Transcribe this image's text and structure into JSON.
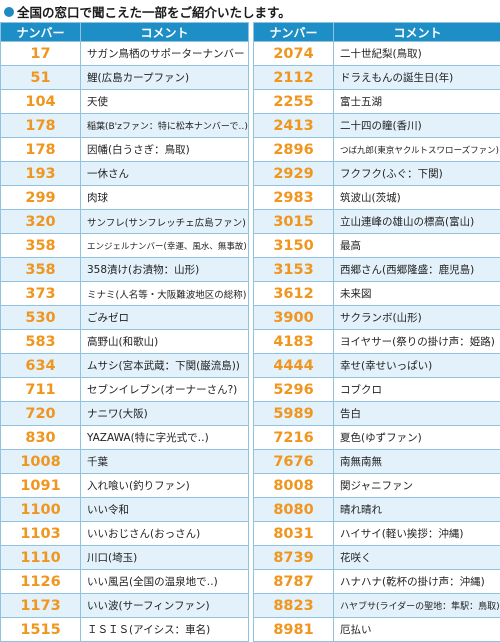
{
  "heading": "全国の窓口で聞こえた一部をご紹介いたします。",
  "columns": {
    "number": "ナンバー",
    "comment": "コメント"
  },
  "left_rows": [
    {
      "number": "17",
      "comment": "サガン鳥栖のサポーターナンバー"
    },
    {
      "number": "51",
      "comment": "鯉(広島カープファン)"
    },
    {
      "number": "104",
      "comment": "天使"
    },
    {
      "number": "178",
      "comment": "稲葉(B'zファン：特に松本ナンバーで‥)"
    },
    {
      "number": "178",
      "comment": "因幡(白うさぎ：鳥取)"
    },
    {
      "number": "193",
      "comment": "一休さん"
    },
    {
      "number": "299",
      "comment": "肉球"
    },
    {
      "number": "320",
      "comment": "サンフレ(サンフレッチェ広島ファン)"
    },
    {
      "number": "358",
      "comment": "エンジェルナンバー(幸運、風水、無事故)"
    },
    {
      "number": "358",
      "comment": "358漬け(お漬物：山形)"
    },
    {
      "number": "373",
      "comment": "ミナミ(人名等・大阪難波地区の総称)"
    },
    {
      "number": "530",
      "comment": "ごみゼロ"
    },
    {
      "number": "583",
      "comment": "高野山(和歌山)"
    },
    {
      "number": "634",
      "comment": "ムサシ(宮本武蔵：下関(巌流島))"
    },
    {
      "number": "711",
      "comment": "セブンイレブン(オーナーさん?)"
    },
    {
      "number": "720",
      "comment": "ナニワ(大阪)"
    },
    {
      "number": "830",
      "comment": "YAZAWA(特に字光式で‥)"
    },
    {
      "number": "1008",
      "comment": "千葉"
    },
    {
      "number": "1091",
      "comment": "入れ喰い(釣りファン)"
    },
    {
      "number": "1100",
      "comment": "いい令和"
    },
    {
      "number": "1103",
      "comment": "いいおじさん(おっさん)"
    },
    {
      "number": "1110",
      "comment": "川口(埼玉)"
    },
    {
      "number": "1126",
      "comment": "いい風呂(全国の温泉地で‥)"
    },
    {
      "number": "1173",
      "comment": "いい波(サーフィンファン)"
    },
    {
      "number": "1515",
      "comment": "ＩＳＩＳ(アイシス：車名)"
    }
  ],
  "right_rows": [
    {
      "number": "2074",
      "comment": "二十世紀梨(鳥取)"
    },
    {
      "number": "2112",
      "comment": "ドラえもんの誕生日(年)"
    },
    {
      "number": "2255",
      "comment": "富士五湖"
    },
    {
      "number": "2413",
      "comment": "二十四の瞳(香川)"
    },
    {
      "number": "2896",
      "comment": "つば九郎(東京ヤクルトスワローズファン)"
    },
    {
      "number": "2929",
      "comment": "フクフク(ふぐ：下関)"
    },
    {
      "number": "2983",
      "comment": "筑波山(茨城)"
    },
    {
      "number": "3015",
      "comment": "立山連峰の雄山の標高(富山)"
    },
    {
      "number": "3150",
      "comment": "最高"
    },
    {
      "number": "3153",
      "comment": "西郷さん(西郷隆盛：鹿児島)"
    },
    {
      "number": "3612",
      "comment": "未来図"
    },
    {
      "number": "3900",
      "comment": "サクランボ(山形)"
    },
    {
      "number": "4183",
      "comment": "ヨイヤサー(祭りの掛け声：姫路)"
    },
    {
      "number": "4444",
      "comment": "幸せ(幸せいっぱい)"
    },
    {
      "number": "5296",
      "comment": "コブクロ"
    },
    {
      "number": "5989",
      "comment": "告白"
    },
    {
      "number": "7216",
      "comment": "夏色(ゆずファン)"
    },
    {
      "number": "7676",
      "comment": "南無南無"
    },
    {
      "number": "8008",
      "comment": "関ジャニファン"
    },
    {
      "number": "8080",
      "comment": "晴れ晴れ"
    },
    {
      "number": "8031",
      "comment": "ハイサイ(軽い挨拶：沖縄)"
    },
    {
      "number": "8739",
      "comment": "花咲く"
    },
    {
      "number": "8787",
      "comment": "ハナハナ(乾杯の掛け声：沖縄)"
    },
    {
      "number": "8823",
      "comment": "ハヤブサ(ライダーの聖地：隼駅：鳥取)"
    },
    {
      "number": "8981",
      "comment": "厄払い"
    }
  ],
  "colors": {
    "header_bg": "#1e8ec6",
    "number_text": "#f0961e",
    "alt_row": "#e2f1fa",
    "bullet": "#1f8ac2"
  }
}
